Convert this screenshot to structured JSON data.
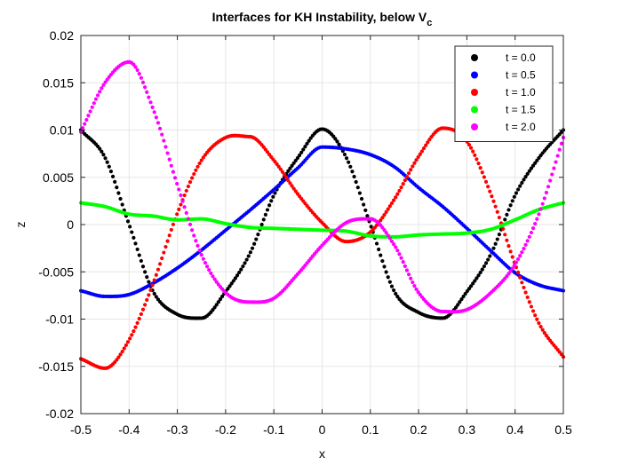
{
  "chart_data": {
    "type": "scatter",
    "title": "Interfaces for KH Instability, below V",
    "title_subscript": "c",
    "xlabel": "x",
    "ylabel": "z",
    "xlim": [
      -0.5,
      0.5
    ],
    "ylim": [
      -0.02,
      0.02
    ],
    "xticks": [
      -0.5,
      -0.4,
      -0.3,
      -0.2,
      -0.1,
      0,
      0.1,
      0.2,
      0.3,
      0.4,
      0.5
    ],
    "xtick_labels": [
      "-0.5",
      "-0.4",
      "-0.3",
      "-0.2",
      "-0.1",
      "0",
      "0.1",
      "0.2",
      "0.3",
      "0.4",
      "0.5"
    ],
    "yticks": [
      -0.02,
      -0.015,
      -0.01,
      -0.005,
      0,
      0.005,
      0.01,
      0.015,
      0.02
    ],
    "ytick_labels": [
      "-0.02",
      "-0.015",
      "-0.01",
      "-0.005",
      "0",
      "0.005",
      "0.01",
      "0.015",
      "0.02"
    ],
    "grid": true,
    "legend_position": "top-right",
    "series": [
      {
        "name": "t = 0.0",
        "color": "#000000",
        "points": [
          [
            -0.5,
            0.01
          ],
          [
            -0.45,
            0.0071
          ],
          [
            -0.4,
            0.0
          ],
          [
            -0.35,
            -0.0071
          ],
          [
            -0.3,
            -0.0095
          ],
          [
            -0.25,
            -0.0099
          ],
          [
            -0.2,
            -0.0071
          ],
          [
            -0.15,
            -0.0031
          ],
          [
            -0.1,
            0.0031
          ],
          [
            -0.05,
            0.0071
          ],
          [
            0.0,
            0.0101
          ],
          [
            0.05,
            0.0071
          ],
          [
            0.1,
            0.0
          ],
          [
            0.15,
            -0.0071
          ],
          [
            0.2,
            -0.0093
          ],
          [
            0.25,
            -0.0099
          ],
          [
            0.3,
            -0.0071
          ],
          [
            0.35,
            -0.0031
          ],
          [
            0.4,
            0.0031
          ],
          [
            0.45,
            0.0071
          ],
          [
            0.5,
            0.01
          ]
        ]
      },
      {
        "name": "t = 0.5",
        "color": "#0000ff",
        "points": [
          [
            -0.5,
            -0.007
          ],
          [
            -0.45,
            -0.0076
          ],
          [
            -0.4,
            -0.0074
          ],
          [
            -0.35,
            -0.0062
          ],
          [
            -0.3,
            -0.0046
          ],
          [
            -0.25,
            -0.0027
          ],
          [
            -0.2,
            -0.0006
          ],
          [
            -0.15,
            0.0015
          ],
          [
            -0.1,
            0.0037
          ],
          [
            -0.05,
            0.006
          ],
          [
            0.0,
            0.0082
          ],
          [
            0.05,
            0.008
          ],
          [
            0.1,
            0.0074
          ],
          [
            0.15,
            0.0061
          ],
          [
            0.2,
            0.0039
          ],
          [
            0.25,
            0.0019
          ],
          [
            0.3,
            -0.0004
          ],
          [
            0.35,
            -0.0028
          ],
          [
            0.4,
            -0.0051
          ],
          [
            0.45,
            -0.0064
          ],
          [
            0.5,
            -0.007
          ]
        ]
      },
      {
        "name": "t = 1.0",
        "color": "#ff0000",
        "points": [
          [
            -0.5,
            -0.0142
          ],
          [
            -0.45,
            -0.0152
          ],
          [
            -0.4,
            -0.0122
          ],
          [
            -0.35,
            -0.0062
          ],
          [
            -0.3,
            0.0012
          ],
          [
            -0.25,
            0.0068
          ],
          [
            -0.2,
            0.0092
          ],
          [
            -0.15,
            0.0093
          ],
          [
            -0.1,
            0.0068
          ],
          [
            -0.05,
            0.0032
          ],
          [
            0.0,
            0.0002
          ],
          [
            0.05,
            -0.0018
          ],
          [
            0.1,
            -0.0008
          ],
          [
            0.15,
            0.0027
          ],
          [
            0.2,
            0.0072
          ],
          [
            0.25,
            0.0102
          ],
          [
            0.3,
            0.0088
          ],
          [
            0.35,
            0.0032
          ],
          [
            0.4,
            -0.0042
          ],
          [
            0.45,
            -0.0105
          ],
          [
            0.5,
            -0.014
          ]
        ]
      },
      {
        "name": "t = 1.5",
        "color": "#00ff00",
        "points": [
          [
            -0.5,
            0.0023
          ],
          [
            -0.45,
            0.0019
          ],
          [
            -0.4,
            0.0011
          ],
          [
            -0.35,
            0.0009
          ],
          [
            -0.3,
            0.0005
          ],
          [
            -0.25,
            0.0006
          ],
          [
            -0.2,
            0.0001
          ],
          [
            -0.15,
            -0.0003
          ],
          [
            -0.1,
            -0.0004
          ],
          [
            -0.05,
            -0.0005
          ],
          [
            0.0,
            -0.0006
          ],
          [
            0.05,
            -0.0007
          ],
          [
            0.1,
            -0.0012
          ],
          [
            0.15,
            -0.0013
          ],
          [
            0.2,
            -0.0011
          ],
          [
            0.25,
            -0.001
          ],
          [
            0.3,
            -0.0009
          ],
          [
            0.35,
            -0.0005
          ],
          [
            0.4,
            0.0005
          ],
          [
            0.45,
            0.0016
          ],
          [
            0.5,
            0.0023
          ]
        ]
      },
      {
        "name": "t = 2.0",
        "color": "#ff00ff",
        "points": [
          [
            -0.5,
            0.0098
          ],
          [
            -0.45,
            0.015
          ],
          [
            -0.4,
            0.0172
          ],
          [
            -0.35,
            0.0122
          ],
          [
            -0.3,
            0.0042
          ],
          [
            -0.25,
            -0.0032
          ],
          [
            -0.2,
            -0.0072
          ],
          [
            -0.15,
            -0.0082
          ],
          [
            -0.1,
            -0.0078
          ],
          [
            -0.05,
            -0.0052
          ],
          [
            0.0,
            -0.0022
          ],
          [
            0.05,
            0.0002
          ],
          [
            0.1,
            0.0006
          ],
          [
            0.15,
            -0.0022
          ],
          [
            0.2,
            -0.0072
          ],
          [
            0.25,
            -0.0092
          ],
          [
            0.3,
            -0.009
          ],
          [
            0.35,
            -0.0072
          ],
          [
            0.4,
            -0.0042
          ],
          [
            0.45,
            0.0012
          ],
          [
            0.5,
            0.0092
          ]
        ]
      }
    ]
  }
}
